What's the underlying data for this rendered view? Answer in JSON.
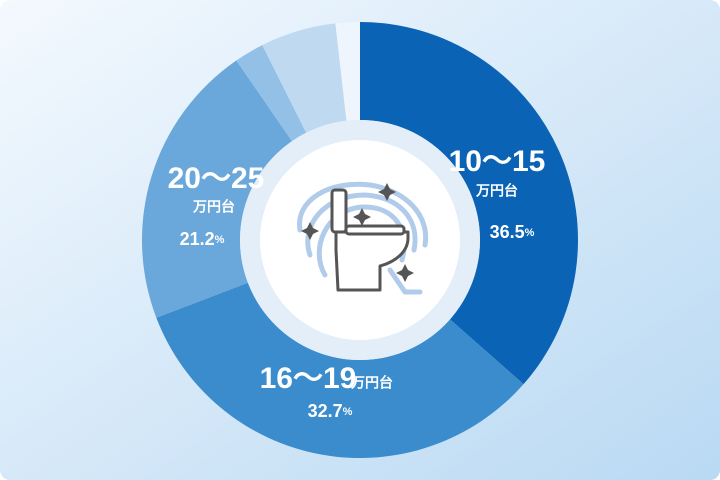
{
  "chart_data": {
    "type": "donut",
    "categories": [
      "10～15",
      "16～19",
      "20～25",
      null,
      null,
      null
    ],
    "unit_label": "万円台",
    "values": [
      36.5,
      32.7,
      21.2,
      2.2,
      5.6,
      1.8
    ],
    "value_labels": [
      "36.5%",
      "32.7%",
      "21.2%",
      null,
      null,
      null
    ],
    "colors": [
      "#0b63b5",
      "#3b8ccd",
      "#6aa7da",
      "#93c0e6",
      "#bed9f0",
      "#eef5fc"
    ]
  }
}
